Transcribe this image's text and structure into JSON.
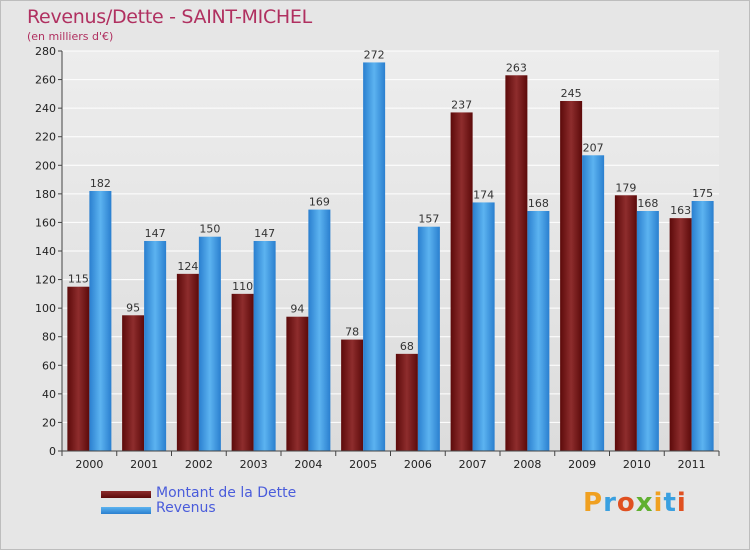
{
  "chart_data": {
    "type": "bar",
    "title": "Revenus/Dette - SAINT-MICHEL",
    "subtitle": "(en milliers d'€)",
    "categories": [
      "2000",
      "2001",
      "2002",
      "2003",
      "2004",
      "2005",
      "2006",
      "2007",
      "2008",
      "2009",
      "2010",
      "2011"
    ],
    "series": [
      {
        "name": "Montant de la Dette",
        "values": [
          115,
          95,
          124,
          110,
          94,
          78,
          68,
          237,
          263,
          245,
          179,
          163
        ],
        "color": "#7a1a1a"
      },
      {
        "name": "Revenus",
        "values": [
          182,
          147,
          150,
          147,
          169,
          272,
          157,
          174,
          168,
          207,
          168,
          175
        ],
        "color": "#3d9ae6"
      }
    ],
    "ylim": [
      0,
      280
    ],
    "yticks": [
      0,
      20,
      40,
      60,
      80,
      100,
      120,
      140,
      160,
      180,
      200,
      220,
      240,
      260,
      280
    ],
    "grid": true,
    "legend_position": "bottom-left"
  },
  "branding": {
    "logo_text": "Proxiti",
    "logo_colors": [
      "#f0a020",
      "#3aa0e0",
      "#e05020",
      "#60b030",
      "#f0a020",
      "#3aa0e0",
      "#e05020"
    ]
  }
}
